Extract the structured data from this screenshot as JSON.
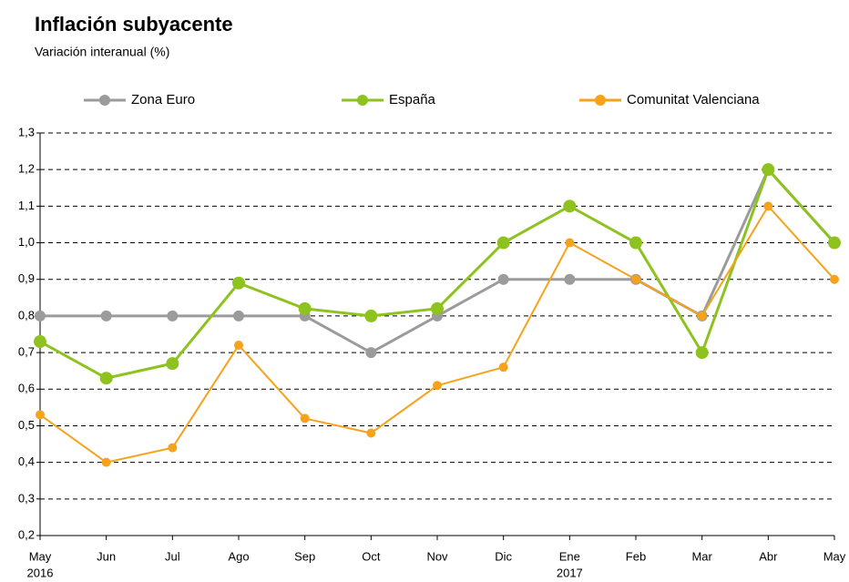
{
  "chart_data": {
    "type": "line",
    "title": "Inflación subyacente",
    "subtitle": "Variación interanual (%)",
    "categories": [
      "May",
      "Jun",
      "Jul",
      "Ago",
      "Sep",
      "Oct",
      "Nov",
      "Dic",
      "Ene",
      "Feb",
      "Mar",
      "Abr",
      "May"
    ],
    "category_years": [
      "2016",
      null,
      null,
      null,
      null,
      null,
      null,
      null,
      "2017",
      null,
      null,
      null,
      null
    ],
    "series": [
      {
        "name": "Zona Euro",
        "color": "#9b9b9b",
        "values": [
          0.8,
          0.8,
          0.8,
          0.8,
          0.8,
          0.7,
          0.8,
          0.9,
          0.9,
          0.9,
          0.8,
          1.2,
          1.0
        ]
      },
      {
        "name": "España",
        "color": "#8dc21f",
        "values": [
          0.73,
          0.63,
          0.67,
          0.89,
          0.82,
          0.8,
          0.82,
          1.0,
          1.1,
          1.0,
          0.7,
          1.2,
          1.0
        ]
      },
      {
        "name": "Comunitat Valenciana",
        "color": "#f7a21b",
        "values": [
          0.53,
          0.4,
          0.44,
          0.72,
          0.52,
          0.48,
          0.61,
          0.66,
          1.0,
          0.9,
          0.8,
          1.1,
          0.9
        ]
      }
    ],
    "ylim": [
      0.2,
      1.3
    ],
    "yticks": [
      {
        "value": 0.2,
        "label": "0,2"
      },
      {
        "value": 0.3,
        "label": "0,3"
      },
      {
        "value": 0.4,
        "label": "0,4"
      },
      {
        "value": 0.5,
        "label": "0,5"
      },
      {
        "value": 0.6,
        "label": "0,6"
      },
      {
        "value": 0.7,
        "label": "0,7"
      },
      {
        "value": 0.8,
        "label": "0,8"
      },
      {
        "value": 0.9,
        "label": "0,9"
      },
      {
        "value": 1.0,
        "label": "1,0"
      },
      {
        "value": 1.1,
        "label": "1,1"
      },
      {
        "value": 1.2,
        "label": "1,2"
      },
      {
        "value": 1.3,
        "label": "1,3"
      }
    ],
    "grid": true,
    "legend": "top"
  }
}
